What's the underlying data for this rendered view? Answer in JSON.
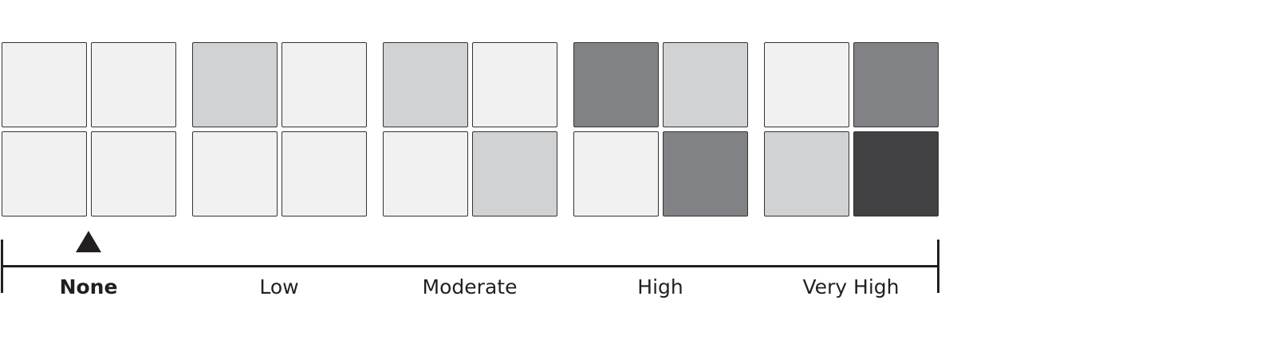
{
  "palette": {
    "none": "#f1f1f1",
    "light": "#d1d2d4",
    "medium": "#808285",
    "dark": "#414143"
  },
  "levels": [
    {
      "label": "None",
      "cells": [
        "none",
        "none",
        "none",
        "none"
      ]
    },
    {
      "label": "Low",
      "cells": [
        "light",
        "none",
        "none",
        "none"
      ]
    },
    {
      "label": "Moderate",
      "cells": [
        "light",
        "none",
        "none",
        "light"
      ]
    },
    {
      "label": "High",
      "cells": [
        "medium",
        "light",
        "none",
        "medium"
      ]
    },
    {
      "label": "Very High",
      "cells": [
        "none",
        "medium",
        "light",
        "dark"
      ]
    }
  ],
  "selected_level": "None",
  "marker_icon": "triangle-up"
}
